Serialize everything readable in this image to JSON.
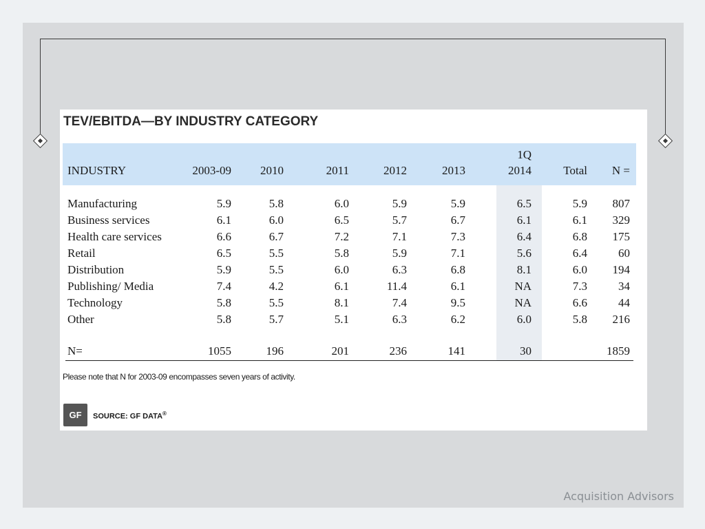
{
  "table": {
    "title": "TEV/EBITDA—BY INDUSTRY CATEGORY",
    "columns": [
      "INDUSTRY",
      "2003-09",
      "2010",
      "2011",
      "2012",
      "2013",
      "1Q",
      "2014",
      "Total",
      "N ="
    ],
    "rows": [
      {
        "industry": "Manufacturing",
        "values": [
          "5.9",
          "5.8",
          "6.0",
          "5.9",
          "5.9",
          "6.5",
          "5.9",
          "807"
        ]
      },
      {
        "industry": "Business services",
        "values": [
          "6.1",
          "6.0",
          "6.5",
          "5.7",
          "6.7",
          "6.1",
          "6.1",
          "329"
        ]
      },
      {
        "industry": "Health care services",
        "values": [
          "6.6",
          "6.7",
          "7.2",
          "7.1",
          "7.3",
          "6.4",
          "6.8",
          "175"
        ]
      },
      {
        "industry": "Retail",
        "values": [
          "6.5",
          "5.5",
          "5.8",
          "5.9",
          "7.1",
          "5.6",
          "6.4",
          "60"
        ]
      },
      {
        "industry": "Distribution",
        "values": [
          "5.9",
          "5.5",
          "6.0",
          "6.3",
          "6.8",
          "8.1",
          "6.0",
          "194"
        ]
      },
      {
        "industry": "Publishing/ Media",
        "values": [
          "7.4",
          "4.2",
          "6.1",
          "11.4",
          "6.1",
          "NA",
          "7.3",
          "34"
        ]
      },
      {
        "industry": "Technology",
        "values": [
          "5.8",
          "5.5",
          "8.1",
          "7.4",
          "9.5",
          "NA",
          "6.6",
          "44"
        ]
      },
      {
        "industry": "Other",
        "values": [
          "5.8",
          "5.7",
          "5.1",
          "6.3",
          "6.2",
          "6.0",
          "5.8",
          "216"
        ]
      }
    ],
    "totals": {
      "label": "N=",
      "values": [
        "1055",
        "196",
        "201",
        "236",
        "141",
        "30",
        "",
        "1859"
      ]
    },
    "footnote": "Please note that N for 2003-09 encompasses seven years of activity.",
    "source": {
      "logo_text": "GF",
      "label": "SOURCE: GF DATA",
      "mark": "®"
    }
  },
  "footer": {
    "brand": "Acquisition Advisors"
  },
  "colors": {
    "header_band": "#cde3f7",
    "highlight_column": "#e9edf2",
    "panel": "#d8dadc"
  }
}
